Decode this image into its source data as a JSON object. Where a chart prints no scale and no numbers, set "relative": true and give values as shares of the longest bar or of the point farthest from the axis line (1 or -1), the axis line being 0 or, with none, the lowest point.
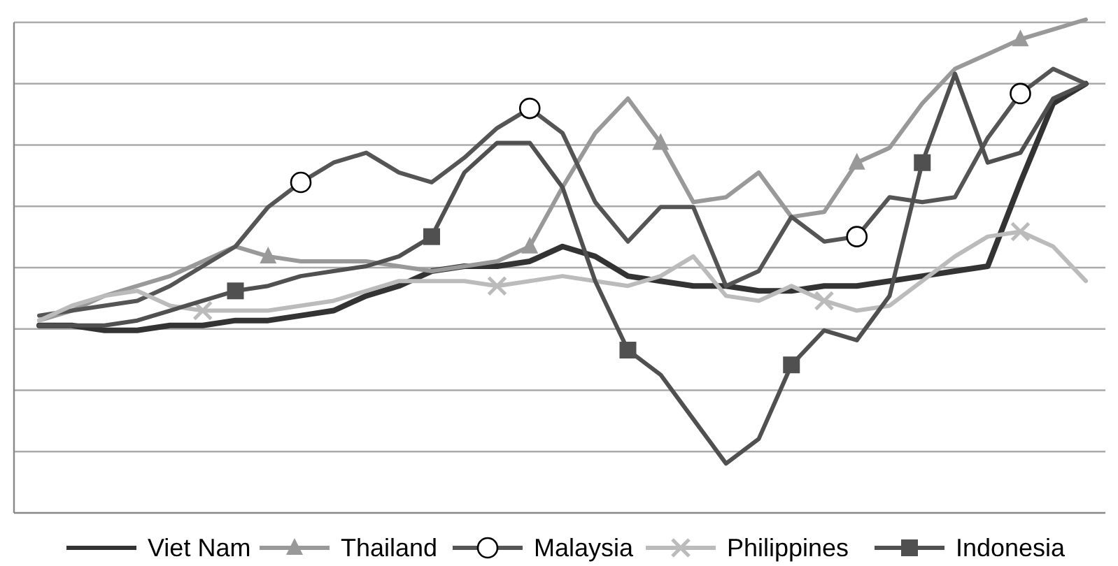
{
  "chart_data": {
    "type": "line",
    "relative": true,
    "grid": "y",
    "legend": "bottom",
    "line_style": "solid",
    "categories": [
      null,
      null,
      null,
      null,
      null,
      null,
      null,
      null,
      null,
      null,
      null,
      null,
      null,
      null,
      null,
      null,
      null,
      null,
      null,
      null,
      null,
      null,
      null,
      null,
      null,
      null,
      null,
      null,
      null,
      null,
      null,
      null,
      null
    ],
    "series": [
      {
        "name": "Viet Nam",
        "color": "#333333",
        "values": [
          0.38,
          0.38,
          0.37,
          0.37,
          0.38,
          0.38,
          0.39,
          0.39,
          0.4,
          0.41,
          0.44,
          0.46,
          0.49,
          0.5,
          0.5,
          0.51,
          0.54,
          0.52,
          0.48,
          0.47,
          0.46,
          0.46,
          0.45,
          0.45,
          0.46,
          0.46,
          0.47,
          0.48,
          0.49,
          0.5,
          0.67,
          0.83,
          0.87
        ]
      },
      {
        "name": "Thailand",
        "color": "#999999",
        "values": [
          0.39,
          0.41,
          0.44,
          0.46,
          0.48,
          0.51,
          0.54,
          0.52,
          0.51,
          0.51,
          0.51,
          0.5,
          0.49,
          0.5,
          0.51,
          0.54,
          0.66,
          0.77,
          0.84,
          0.75,
          0.63,
          0.64,
          0.69,
          0.6,
          0.61,
          0.71,
          0.74,
          0.83,
          0.9,
          0.93,
          0.96,
          0.98,
          1.0
        ]
      },
      {
        "name": "Malaysia",
        "color": "#555555",
        "values": [
          0.4,
          0.41,
          0.42,
          0.43,
          0.46,
          0.5,
          0.54,
          0.62,
          0.67,
          0.71,
          0.73,
          0.69,
          0.67,
          0.72,
          0.78,
          0.82,
          0.77,
          0.63,
          0.55,
          0.62,
          0.62,
          0.46,
          0.49,
          0.6,
          0.55,
          0.56,
          0.64,
          0.63,
          0.64,
          0.76,
          0.85,
          0.9,
          0.87
        ]
      },
      {
        "name": "Philippines",
        "color": "#bbbbbb",
        "values": [
          0.39,
          0.42,
          0.44,
          0.45,
          0.42,
          0.41,
          0.41,
          0.41,
          0.42,
          0.43,
          0.45,
          0.47,
          0.47,
          0.47,
          0.46,
          0.47,
          0.48,
          0.47,
          0.46,
          0.48,
          0.52,
          0.44,
          0.43,
          0.46,
          0.43,
          0.41,
          0.42,
          0.47,
          0.52,
          0.56,
          0.57,
          0.54,
          0.47
        ]
      },
      {
        "name": "Indonesia",
        "color": "#505050",
        "values": [
          0.38,
          0.38,
          0.38,
          0.39,
          0.41,
          0.43,
          0.45,
          0.46,
          0.48,
          0.49,
          0.5,
          0.52,
          0.56,
          0.69,
          0.75,
          0.75,
          0.66,
          0.47,
          0.33,
          0.28,
          0.19,
          0.1,
          0.15,
          0.3,
          0.37,
          0.35,
          0.44,
          0.71,
          0.89,
          0.71,
          0.73,
          0.84,
          0.87
        ]
      }
    ]
  }
}
